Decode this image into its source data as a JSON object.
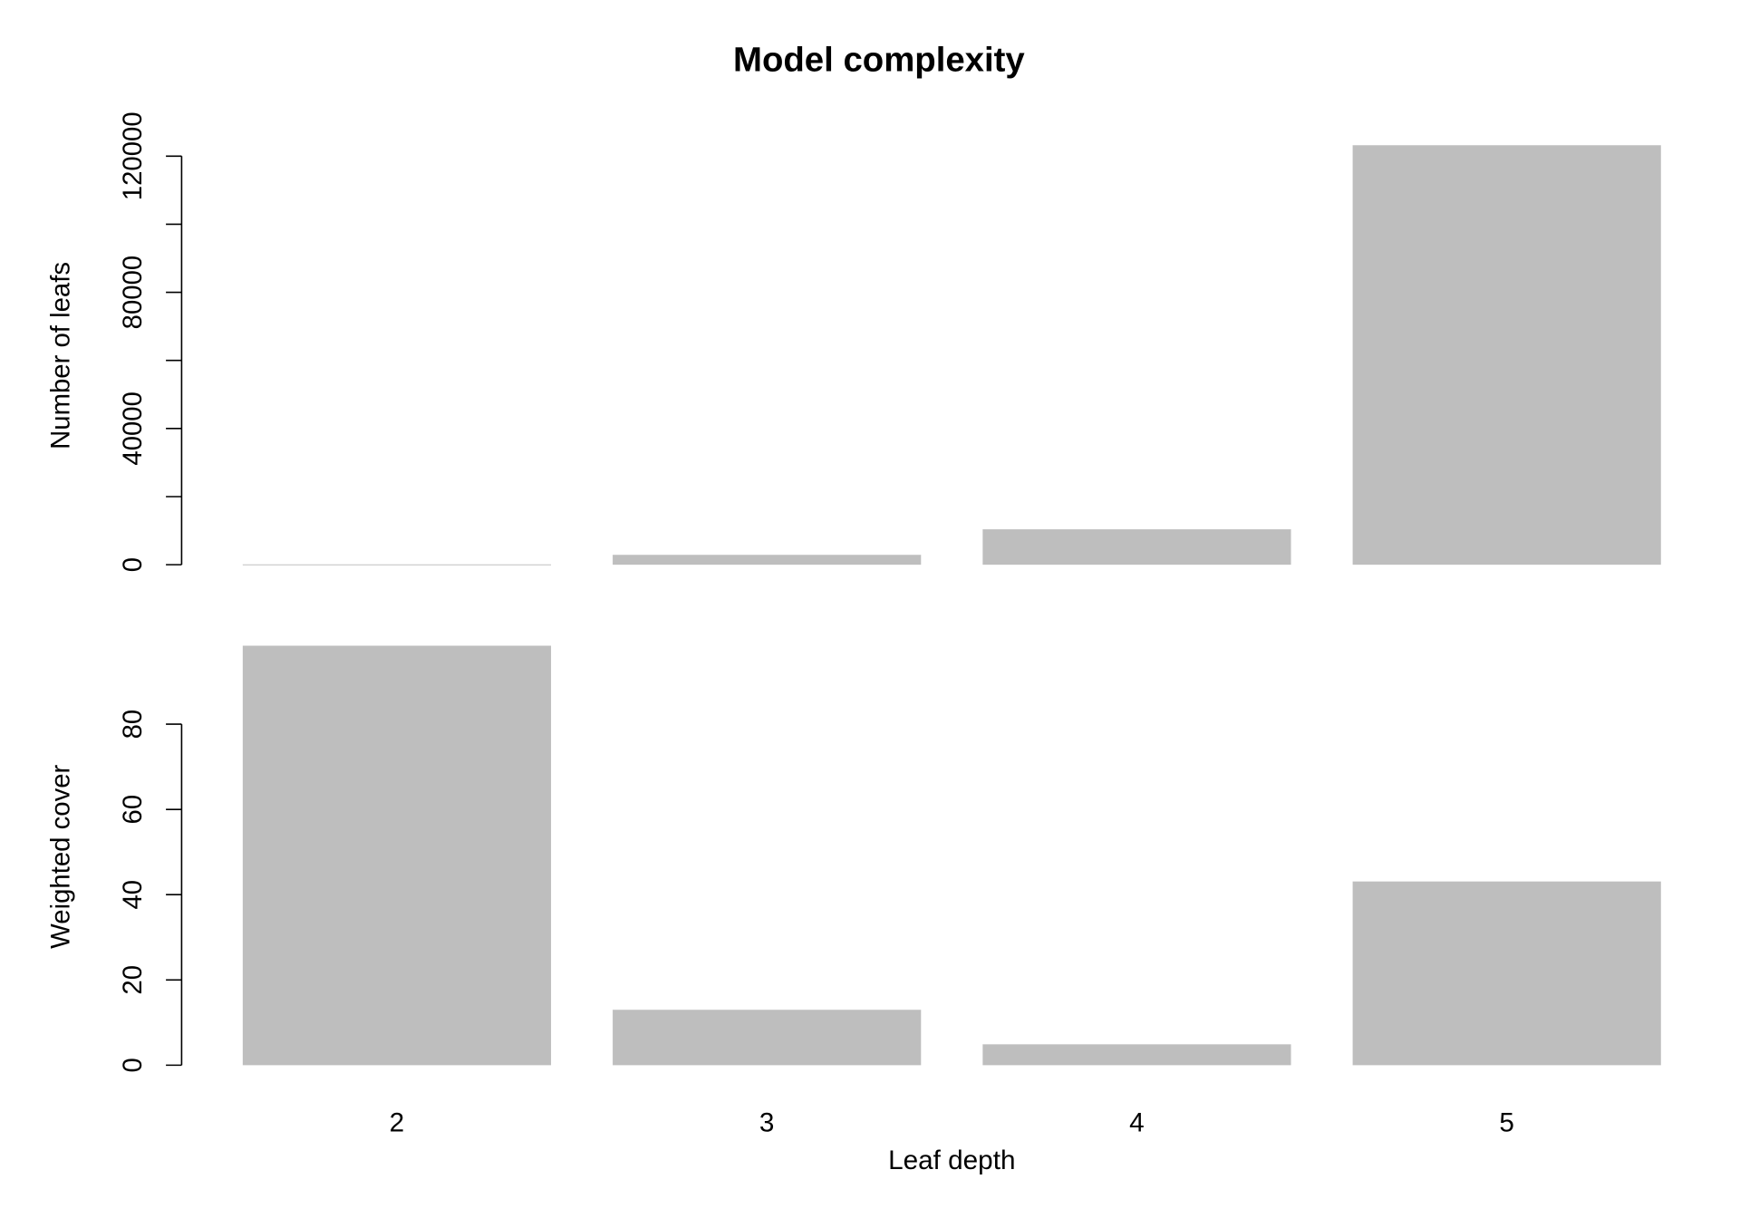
{
  "chart_data": [
    {
      "type": "bar",
      "title": "Model complexity",
      "ylabel": "Number of leafs",
      "values": [
        100,
        2900,
        10400,
        123200
      ],
      "color": "#bebebe",
      "ylim": [
        0,
        128000
      ],
      "yticks": [
        0,
        40000,
        80000,
        120000
      ],
      "minor_yticks": [
        20000,
        60000,
        100000
      ]
    },
    {
      "type": "bar",
      "ylabel": "Weighted cover",
      "xlabel": "Leaf depth",
      "categories": [
        "2",
        "3",
        "4",
        "5"
      ],
      "values": [
        98.4,
        13,
        4.9,
        43.1
      ],
      "color": "#bebebe",
      "ylim": [
        0,
        102
      ],
      "yticks": [
        0,
        20,
        40,
        60,
        80
      ]
    }
  ]
}
